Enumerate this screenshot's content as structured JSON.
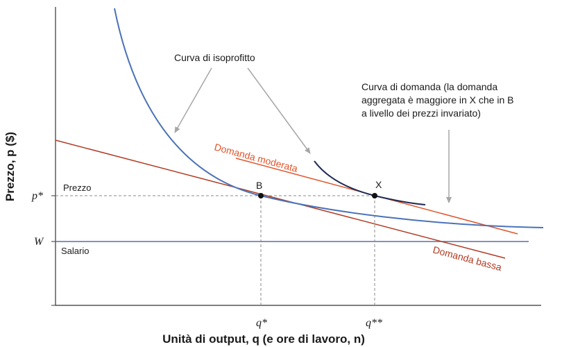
{
  "axes": {
    "y_label": "Prezzo, p ($)",
    "x_label": "Unità di output, q (e ore di lavoro, n)"
  },
  "y_ticks": {
    "p_star": "p*",
    "w": "W"
  },
  "x_ticks": {
    "q_star": "q*",
    "q_star_star": "q**"
  },
  "lines": {
    "prezzo": "Prezzo",
    "salario": "Salario"
  },
  "curves": {
    "isoprofit_annotation": "Curva di isoprofitto",
    "demand_annotation": [
      "Curva di domanda (la domanda",
      "aggregata è maggiore in X che in B",
      "a livello dei prezzi invariato)"
    ],
    "demand_moderate": "Domanda moderata",
    "demand_low": "Domanda bassa"
  },
  "points": {
    "b": "B",
    "x": "X"
  },
  "colors": {
    "isoprofit_light": "#4a72b8",
    "isoprofit_dark": "#1f2a55",
    "demand_moderate": "#e0542a",
    "demand_low": "#b03a22",
    "wage_line": "#5a6fa0",
    "dashed": "#888888",
    "axis": "#333333",
    "arrow": "#a6a6a6"
  }
}
